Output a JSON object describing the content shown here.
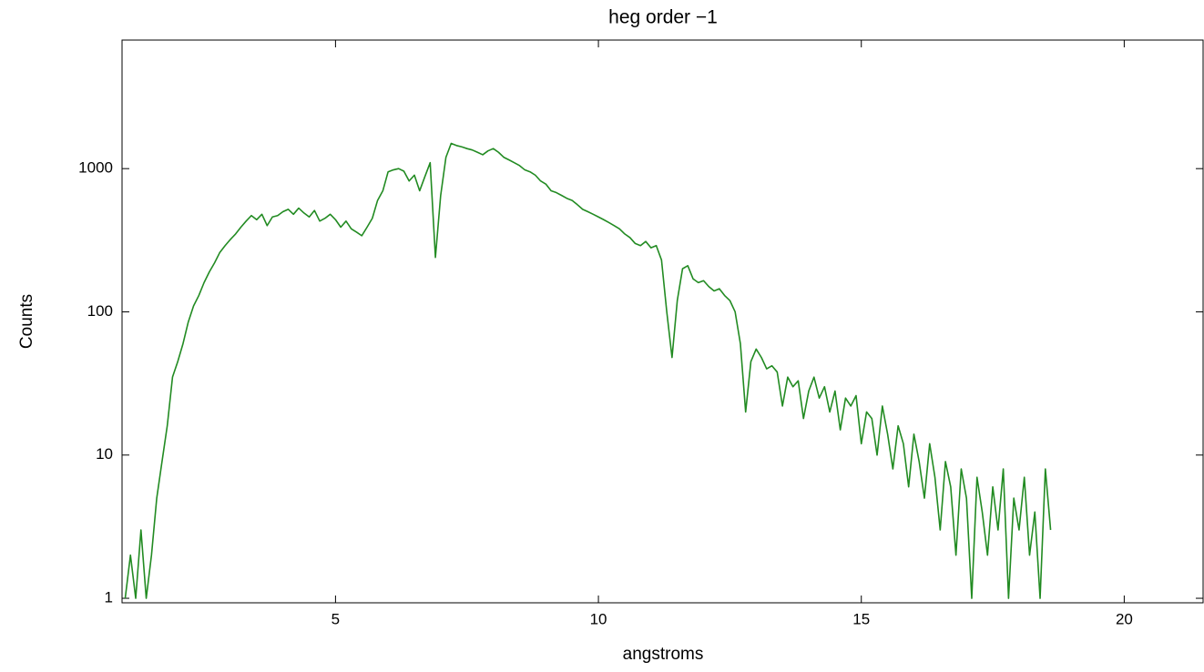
{
  "chart_data": {
    "type": "line",
    "title": "heg order −1",
    "x_label": "angstroms",
    "y_label": "Counts",
    "xlim": [
      0.94,
      21.5
    ],
    "ylim": [
      0.93,
      7900
    ],
    "xticks": [
      5,
      10,
      15,
      20
    ],
    "yticks": [
      1,
      10,
      100,
      1000
    ],
    "yscale": "log",
    "grid": false,
    "series": [
      {
        "color": "#228b22",
        "x": [
          1.0,
          1.1,
          1.2,
          1.3,
          1.4,
          1.5,
          1.6,
          1.7,
          1.8,
          1.9,
          2.0,
          2.1,
          2.2,
          2.3,
          2.4,
          2.5,
          2.6,
          2.7,
          2.8,
          2.9,
          3.0,
          3.1,
          3.2,
          3.3,
          3.4,
          3.5,
          3.6,
          3.7,
          3.8,
          3.9,
          4.0,
          4.1,
          4.2,
          4.3,
          4.4,
          4.5,
          4.6,
          4.7,
          4.8,
          4.9,
          5.0,
          5.1,
          5.2,
          5.3,
          5.4,
          5.5,
          5.6,
          5.7,
          5.8,
          5.9,
          6.0,
          6.1,
          6.2,
          6.3,
          6.4,
          6.5,
          6.6,
          6.7,
          6.8,
          6.9,
          7.0,
          7.1,
          7.2,
          7.3,
          7.4,
          7.5,
          7.6,
          7.7,
          7.8,
          7.9,
          8.0,
          8.1,
          8.2,
          8.3,
          8.4,
          8.5,
          8.6,
          8.7,
          8.8,
          8.9,
          9.0,
          9.1,
          9.2,
          9.3,
          9.4,
          9.5,
          9.6,
          9.7,
          9.8,
          9.9,
          10.0,
          10.1,
          10.2,
          10.3,
          10.4,
          10.5,
          10.6,
          10.7,
          10.8,
          10.9,
          11.0,
          11.1,
          11.2,
          11.3,
          11.4,
          11.5,
          11.6,
          11.7,
          11.8,
          11.9,
          12.0,
          12.1,
          12.2,
          12.3,
          12.4,
          12.5,
          12.6,
          12.7,
          12.8,
          12.9,
          13.0,
          13.1,
          13.2,
          13.3,
          13.4,
          13.5,
          13.6,
          13.7,
          13.8,
          13.9,
          14.0,
          14.1,
          14.2,
          14.3,
          14.4,
          14.5,
          14.6,
          14.7,
          14.8,
          14.9,
          15.0,
          15.1,
          15.2,
          15.3,
          15.4,
          15.5,
          15.6,
          15.7,
          15.8,
          15.9,
          16.0,
          16.1,
          16.2,
          16.3,
          16.4,
          16.5,
          16.6,
          16.7,
          16.8,
          16.9,
          17.0,
          17.1,
          17.2,
          17.3,
          17.4,
          17.5,
          17.6,
          17.7,
          17.8,
          17.9,
          18.0,
          18.1,
          18.2,
          18.3,
          18.4,
          18.5,
          18.6
        ],
        "values": [
          1,
          2,
          1,
          3,
          1,
          2,
          5,
          9,
          16,
          35,
          45,
          60,
          85,
          110,
          130,
          160,
          190,
          220,
          260,
          290,
          320,
          350,
          390,
          430,
          470,
          440,
          480,
          400,
          460,
          470,
          500,
          520,
          480,
          530,
          490,
          460,
          510,
          430,
          450,
          480,
          440,
          390,
          430,
          380,
          360,
          340,
          390,
          450,
          600,
          700,
          950,
          980,
          1000,
          960,
          820,
          900,
          700,
          880,
          1100,
          240,
          650,
          1200,
          1500,
          1450,
          1420,
          1380,
          1350,
          1300,
          1250,
          1330,
          1380,
          1300,
          1200,
          1150,
          1100,
          1050,
          980,
          950,
          900,
          820,
          780,
          700,
          680,
          650,
          620,
          600,
          560,
          520,
          500,
          480,
          460,
          440,
          420,
          400,
          380,
          350,
          330,
          300,
          290,
          310,
          280,
          290,
          230,
          100,
          48,
          120,
          200,
          210,
          170,
          160,
          165,
          150,
          140,
          145,
          130,
          120,
          100,
          60,
          20,
          45,
          55,
          48,
          40,
          42,
          38,
          22,
          35,
          30,
          33,
          18,
          28,
          35,
          25,
          30,
          20,
          28,
          15,
          25,
          22,
          26,
          12,
          20,
          18,
          10,
          22,
          14,
          8,
          16,
          12,
          6,
          14,
          9,
          5,
          12,
          7,
          3,
          9,
          6,
          2,
          8,
          5,
          1,
          7,
          4,
          2,
          6,
          3,
          8,
          1,
          5,
          3,
          7,
          2,
          4,
          1,
          8,
          3
        ]
      }
    ]
  }
}
